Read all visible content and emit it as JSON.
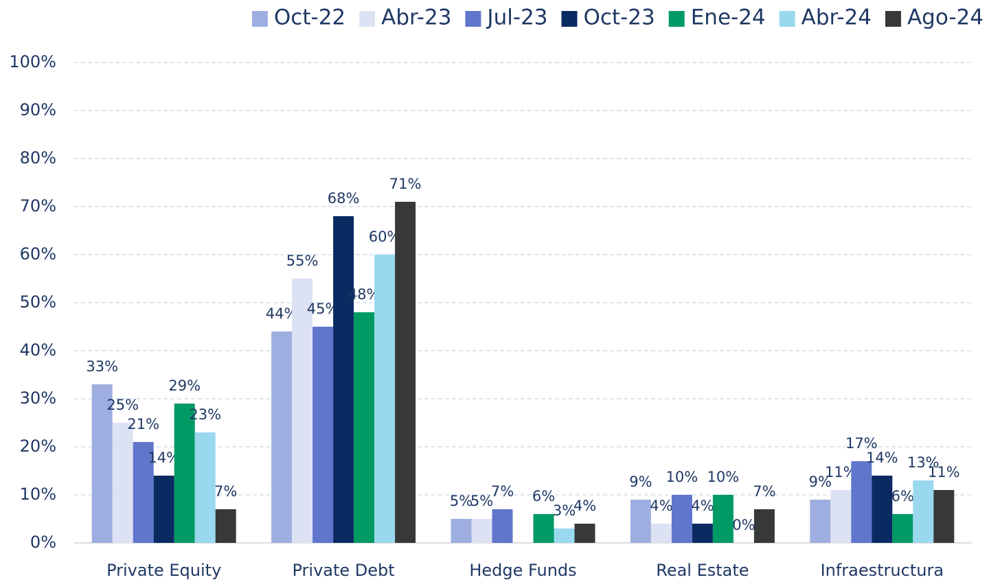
{
  "chart_data": {
    "type": "bar",
    "categories": [
      "Private Equity",
      "Private Debt",
      "Hedge Funds",
      "Real Estate",
      "Infraestructura"
    ],
    "series": [
      {
        "name": "Oct-22",
        "color": "#9eaee0",
        "values": [
          33,
          44,
          5,
          9,
          9
        ],
        "value_labels": [
          "33%",
          "44%",
          "5%",
          "9%",
          "9%"
        ]
      },
      {
        "name": "Abr-23",
        "color": "#dde1f4",
        "values": [
          25,
          55,
          5,
          4,
          11
        ],
        "value_labels": [
          "25%",
          "55%",
          "5%",
          "4%",
          "11%"
        ]
      },
      {
        "name": "Jul-23",
        "color": "#6076cc",
        "values": [
          21,
          45,
          7,
          10,
          17
        ],
        "value_labels": [
          "21%",
          "45%",
          "7%",
          "10%",
          "17%"
        ]
      },
      {
        "name": "Oct-23",
        "color": "#0a2a62",
        "values": [
          14,
          68,
          null,
          4,
          14
        ],
        "value_labels": [
          "14%",
          "68%",
          null,
          "4%",
          "14%"
        ]
      },
      {
        "name": "Ene-24",
        "color": "#009a64",
        "values": [
          29,
          48,
          6,
          10,
          6
        ],
        "value_labels": [
          "29%",
          "48%",
          "6%",
          "10%",
          "6%"
        ]
      },
      {
        "name": "Abr-24",
        "color": "#9ad8ef",
        "values": [
          23,
          60,
          3,
          0,
          13
        ],
        "value_labels": [
          "23%",
          "60%",
          "3%",
          "0%",
          "13%"
        ]
      },
      {
        "name": "Ago-24",
        "color": "#373838",
        "values": [
          7,
          71,
          4,
          7,
          11
        ],
        "value_labels": [
          "7%",
          "71%",
          "4%",
          "7%",
          "11%"
        ]
      }
    ],
    "ylim": [
      0,
      100
    ],
    "yticks": [
      {
        "value": 0,
        "label": "0%"
      },
      {
        "value": 10,
        "label": "10%"
      },
      {
        "value": 20,
        "label": "20%"
      },
      {
        "value": 30,
        "label": "30%"
      },
      {
        "value": 40,
        "label": "40%"
      },
      {
        "value": 50,
        "label": "50%"
      },
      {
        "value": 60,
        "label": "60%"
      },
      {
        "value": 70,
        "label": "70%"
      },
      {
        "value": 80,
        "label": "80%"
      },
      {
        "value": 90,
        "label": "90%"
      },
      {
        "value": 100,
        "label": "100%"
      }
    ],
    "grid": true,
    "legend": "top"
  }
}
